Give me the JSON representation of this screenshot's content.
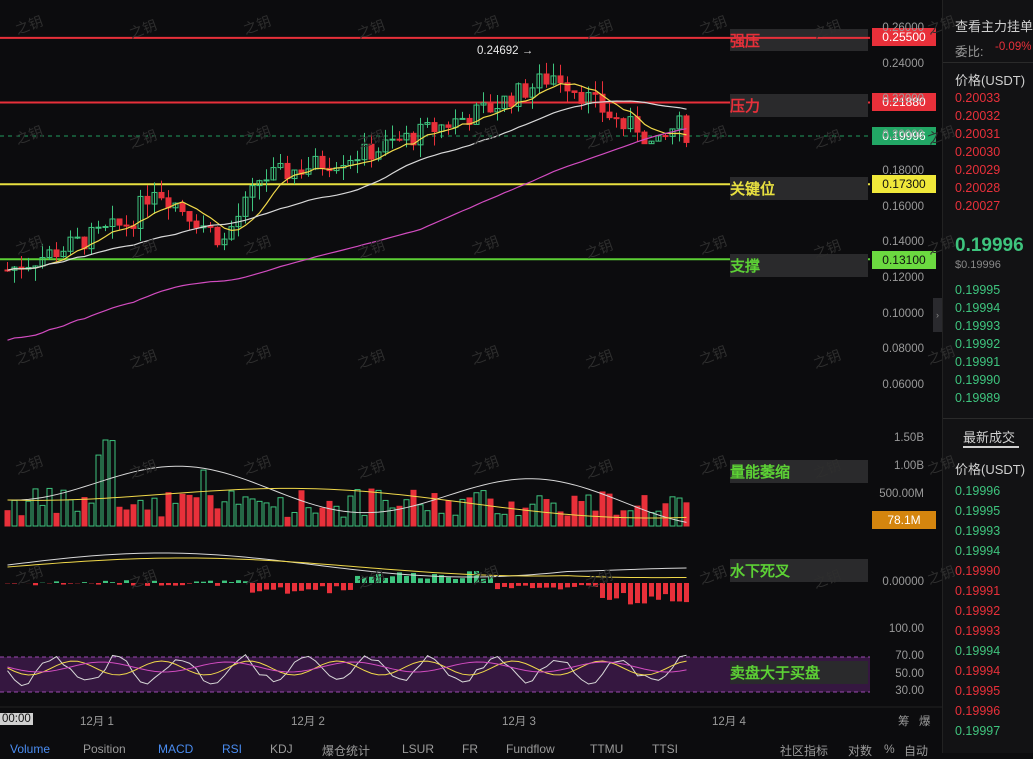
{
  "chart_data": {
    "type": "candlestick",
    "dates": [
      "00:00",
      "12月 1",
      "12月 2",
      "12月 3",
      "12月 4"
    ],
    "price_axis": [
      "0.26000",
      "0.24000",
      "0.22000",
      "0.20000",
      "0.18000",
      "0.16000",
      "0.14000",
      "0.12000",
      "0.10000",
      "0.08000",
      "0.06000"
    ],
    "volume_axis": [
      "1.50B",
      "1.00B",
      "500.00M"
    ],
    "macd_axis": [
      "0.00000"
    ],
    "rsi_axis": [
      "100.00",
      "70.00",
      "50.00",
      "30.00"
    ],
    "high_marker": "0.24692 →",
    "current_price": "0.19996",
    "current_volume": "78.1M",
    "levels": [
      {
        "label": "强压",
        "price": "0.25500",
        "value": 0.255,
        "color": "#e8303a"
      },
      {
        "label": "压力",
        "price": "0.21880",
        "value": 0.2188,
        "color": "#e8303a"
      },
      {
        "label": "关键位",
        "price": "0.17300",
        "value": 0.173,
        "color": "#e8e040"
      },
      {
        "label": "支撑",
        "price": "0.13100",
        "value": 0.131,
        "color": "#5cd035"
      }
    ],
    "annotations": [
      "量能萎缩",
      "水下死叉",
      "卖盘大于买盘"
    ]
  },
  "right_panel": {
    "order_book_title": "查看主力挂单",
    "ratio_label": "委比:",
    "ratio_value": "-0.09%",
    "price_header": "价格(USDT)",
    "asks": [
      "0.20033",
      "0.20032",
      "0.20031",
      "0.20030",
      "0.20029",
      "0.20028",
      "0.20027"
    ],
    "last_price": "0.19996",
    "last_price_sub": "$0.19996",
    "bids": [
      "0.19995",
      "0.19994",
      "0.19993",
      "0.19992",
      "0.19991",
      "0.19990",
      "0.19989"
    ],
    "trades_title": "最新成交",
    "trades_header": "价格(USDT)",
    "trades": [
      {
        "p": "0.19996",
        "c": "#3ec47e"
      },
      {
        "p": "0.19995",
        "c": "#3ec47e"
      },
      {
        "p": "0.19993",
        "c": "#3ec47e"
      },
      {
        "p": "0.19994",
        "c": "#3ec47e"
      },
      {
        "p": "0.19990",
        "c": "#e8303a"
      },
      {
        "p": "0.19991",
        "c": "#e8303a"
      },
      {
        "p": "0.19992",
        "c": "#e8303a"
      },
      {
        "p": "0.19993",
        "c": "#e8303a"
      },
      {
        "p": "0.19994",
        "c": "#3ec47e"
      },
      {
        "p": "0.19994",
        "c": "#e8303a"
      },
      {
        "p": "0.19995",
        "c": "#e8303a"
      },
      {
        "p": "0.19996",
        "c": "#e8303a"
      },
      {
        "p": "0.19997",
        "c": "#3ec47e"
      }
    ]
  },
  "right_axis_footer": [
    "筹",
    "爆"
  ],
  "bottom_tabs": [
    "Volume",
    "Position",
    "MACD",
    "RSI",
    "KDJ",
    "爆仓统计",
    "LSUR",
    "FR",
    "Fundflow",
    "TTMU",
    "TTSI"
  ],
  "bottom_right": [
    "社区指标",
    "对数",
    "%",
    "自动"
  ],
  "watermark": "之钥",
  "colors": {
    "up": "#3ec47e",
    "down": "#e8303a",
    "ma_short": "#f0d84a",
    "ma_mid": "#d8d8d8",
    "ma_long": "#d24cc0"
  }
}
